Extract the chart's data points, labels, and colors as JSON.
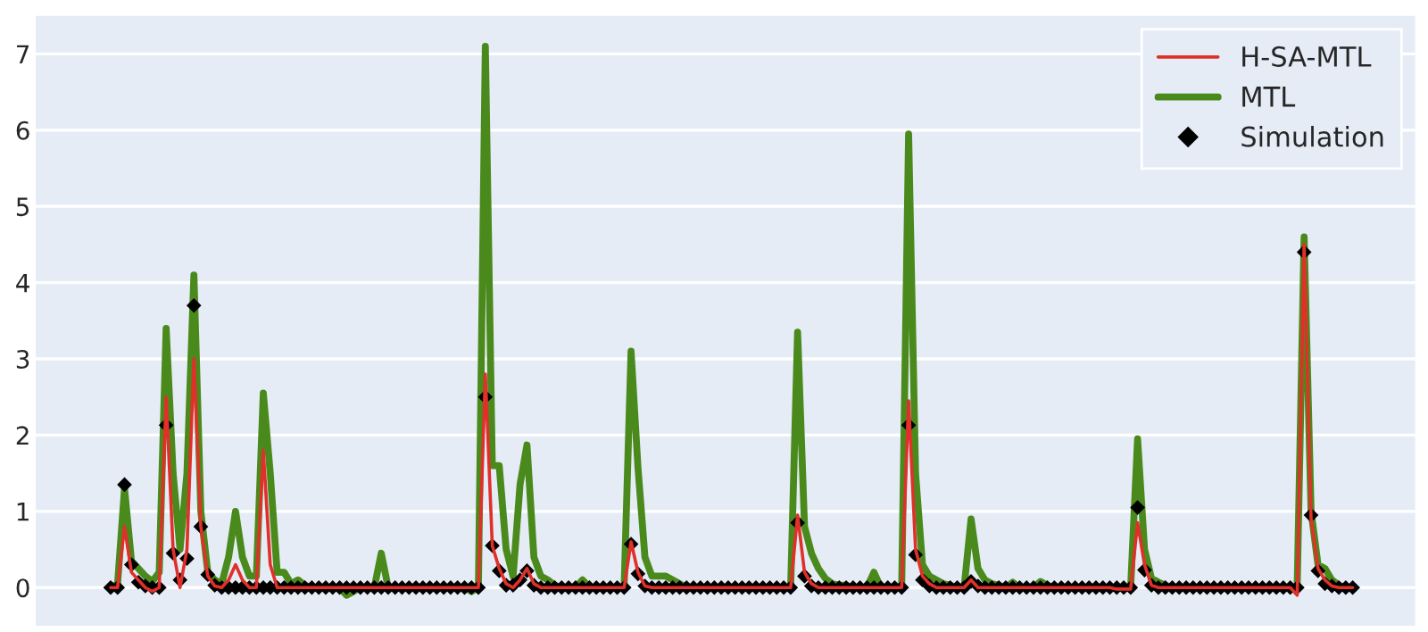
{
  "chart_data": {
    "type": "line",
    "categories": [
      null,
      null,
      null,
      null,
      null,
      null,
      null,
      null,
      null,
      null,
      null,
      null,
      null,
      null,
      null,
      null,
      null,
      null,
      null,
      null,
      null,
      null,
      null,
      null,
      null,
      null,
      null,
      null,
      null,
      null,
      null,
      null,
      null,
      null,
      null,
      null,
      null,
      null,
      null,
      null,
      null,
      null,
      null,
      null,
      null,
      null,
      null,
      null,
      null,
      null,
      null,
      null,
      null,
      null,
      null,
      null,
      null,
      null,
      null,
      null,
      null,
      null,
      null,
      null,
      null,
      null,
      null,
      null,
      null,
      null,
      null,
      null,
      null,
      null,
      null,
      null,
      null,
      null,
      null,
      null,
      null,
      null,
      null,
      null,
      null,
      null,
      null,
      null,
      null,
      null,
      null,
      null,
      null,
      null,
      null,
      null,
      null,
      null,
      null,
      null,
      null,
      null,
      null,
      null,
      null,
      null,
      null,
      null,
      null,
      null,
      null,
      null,
      null,
      null,
      null,
      null,
      null,
      null,
      null,
      null,
      null,
      null,
      null,
      null,
      null,
      null,
      null,
      null,
      null,
      null,
      null,
      null,
      null,
      null,
      null,
      null,
      null,
      null,
      null,
      null,
      null,
      null,
      null,
      null,
      null,
      null,
      null,
      null,
      null,
      null,
      null,
      null,
      null,
      null,
      null,
      null,
      null,
      null,
      null,
      null,
      null,
      null,
      null,
      null,
      null,
      null,
      null,
      null,
      null,
      null,
      null,
      null,
      null,
      null,
      null,
      null,
      null,
      null,
      null,
      null
    ],
    "series": [
      {
        "name": "H-SA-MTL",
        "color": "#e0302a",
        "values": [
          0,
          0,
          0.8,
          0.2,
          0.1,
          0,
          -0.05,
          0,
          2.5,
          0.5,
          0,
          0.5,
          3.0,
          0.8,
          0.15,
          0.02,
          0,
          0.1,
          0.3,
          0.1,
          0,
          0,
          1.8,
          0.3,
          0,
          0,
          0,
          0,
          0,
          0,
          0,
          0,
          0,
          0,
          0,
          0,
          0,
          0,
          0,
          0,
          0,
          0,
          0,
          0,
          0,
          0,
          0,
          0,
          0,
          0,
          0,
          0,
          0,
          0,
          2.8,
          0.55,
          0.25,
          0.05,
          0,
          0.1,
          0.25,
          0.05,
          0,
          0,
          0,
          0,
          0,
          0,
          0,
          0,
          0,
          0,
          0,
          0,
          0,
          0.6,
          0.2,
          0.02,
          0,
          0,
          0,
          0,
          0,
          0,
          0,
          0,
          0,
          0,
          0,
          0,
          0,
          0,
          0,
          0,
          0,
          0,
          0,
          0,
          0,
          0.95,
          0.2,
          0.05,
          0,
          0,
          0,
          0,
          0,
          0,
          0,
          0,
          0,
          0,
          0,
          0,
          0,
          2.45,
          0.5,
          0.15,
          0.05,
          0,
          0,
          0,
          0,
          0,
          0.1,
          0,
          0,
          0,
          0,
          0,
          0,
          0,
          0,
          0,
          0,
          0,
          0,
          0,
          0,
          0,
          0,
          0,
          0,
          0,
          0,
          -0.02,
          -0.02,
          -0.02,
          0.85,
          0.3,
          0.03,
          0,
          0,
          0,
          0,
          0,
          0,
          0,
          0,
          0,
          0,
          0,
          0,
          0,
          0,
          0,
          0,
          0,
          0,
          0,
          0,
          -0.1,
          4.5,
          0.9,
          0.25,
          0.1,
          0.02,
          0,
          0,
          0
        ]
      },
      {
        "name": "MTL",
        "color": "#4a8a1c",
        "values": [
          0,
          0.05,
          1.3,
          0.35,
          0.25,
          0.15,
          0.08,
          0.2,
          3.4,
          1.5,
          0.5,
          1.5,
          4.1,
          1.0,
          0.2,
          0.1,
          0.05,
          0.4,
          1.0,
          0.4,
          0.15,
          0.15,
          2.55,
          1.5,
          0.2,
          0.2,
          0.05,
          0.1,
          0.03,
          0,
          0,
          0,
          0,
          0,
          -0.1,
          -0.05,
          0,
          0,
          0,
          0.45,
          0,
          0,
          0,
          0,
          0,
          0,
          0,
          0,
          0,
          0,
          0,
          0,
          -0.05,
          0,
          7.1,
          1.6,
          1.6,
          0.5,
          0.15,
          1.35,
          1.87,
          0.4,
          0.15,
          0.1,
          0.03,
          0,
          0,
          0,
          0.1,
          0,
          0,
          0,
          0,
          0,
          0,
          3.1,
          1.57,
          0.4,
          0.15,
          0.15,
          0.15,
          0.1,
          0.05,
          0,
          0,
          0,
          0,
          0,
          0,
          0,
          0,
          0,
          0,
          0,
          0,
          0,
          0,
          0,
          0,
          3.35,
          0.8,
          0.45,
          0.25,
          0.12,
          0.05,
          0.03,
          0.03,
          0,
          0,
          0,
          0.2,
          0,
          0,
          0,
          0,
          5.95,
          1.5,
          0.3,
          0.15,
          0.1,
          0.05,
          0.03,
          0,
          0,
          0.9,
          0.25,
          0.1,
          0.05,
          0.03,
          0,
          0.07,
          0,
          0,
          0,
          0.08,
          0.03,
          0,
          0,
          0,
          0,
          0,
          0,
          0,
          0,
          0,
          0,
          0,
          0,
          1.95,
          0.5,
          0.12,
          0.07,
          0.03,
          0,
          0,
          0,
          0,
          0,
          0,
          0,
          0,
          0,
          0,
          0,
          0,
          0,
          0,
          0,
          0,
          0,
          0,
          0,
          4.6,
          1.0,
          0.3,
          0.25,
          0.1,
          0.03,
          0,
          0
        ]
      },
      {
        "name": "Simulation",
        "type": "scatter",
        "marker": "diamond",
        "color": "#000000",
        "values": [
          0,
          0,
          1.35,
          0.3,
          0.07,
          0.02,
          0,
          0,
          2.13,
          0.45,
          0.1,
          0.38,
          3.7,
          0.8,
          0.17,
          0.03,
          0,
          0,
          0,
          0,
          0,
          0,
          0,
          0,
          0,
          0,
          0,
          0,
          0,
          0,
          0,
          0,
          0,
          0,
          0,
          0,
          0,
          0,
          0,
          0,
          0,
          0,
          0,
          0,
          0,
          0,
          0,
          0,
          0,
          0,
          0,
          0,
          0,
          0,
          2.5,
          0.55,
          0.22,
          0.03,
          0.03,
          0.1,
          0.22,
          0.03,
          0,
          0,
          0,
          0,
          0,
          0,
          0,
          0,
          0,
          0,
          0,
          0,
          0,
          0.57,
          0.18,
          0.02,
          0,
          0,
          0,
          0,
          0,
          0,
          0,
          0,
          0,
          0,
          0,
          0,
          0,
          0,
          0,
          0,
          0,
          0,
          0,
          0,
          0,
          0.85,
          0.15,
          0.02,
          0,
          0,
          0,
          0,
          0,
          0,
          0,
          0,
          0,
          0,
          0,
          0,
          0,
          2.13,
          0.43,
          0.1,
          0.02,
          0,
          0,
          0,
          0,
          0,
          0.08,
          0.02,
          0,
          0,
          0,
          0,
          0,
          0,
          0,
          0,
          0,
          0,
          0,
          0,
          0,
          0,
          0,
          0,
          0,
          0,
          0,
          0,
          0,
          0,
          1.05,
          0.23,
          0.03,
          0,
          0,
          0,
          0,
          0,
          0,
          0,
          0,
          0,
          0,
          0,
          0,
          0,
          0,
          0,
          0,
          0,
          0,
          0,
          0,
          0,
          4.4,
          0.95,
          0.22,
          0.05,
          0.02,
          0,
          0,
          0
        ]
      }
    ],
    "ylim": [
      -0.5,
      7.5
    ],
    "yticks": [
      0,
      1,
      2,
      3,
      4,
      5,
      6,
      7
    ],
    "grid": "y",
    "legend": "top right",
    "marker": "none",
    "line_style": "solid"
  }
}
